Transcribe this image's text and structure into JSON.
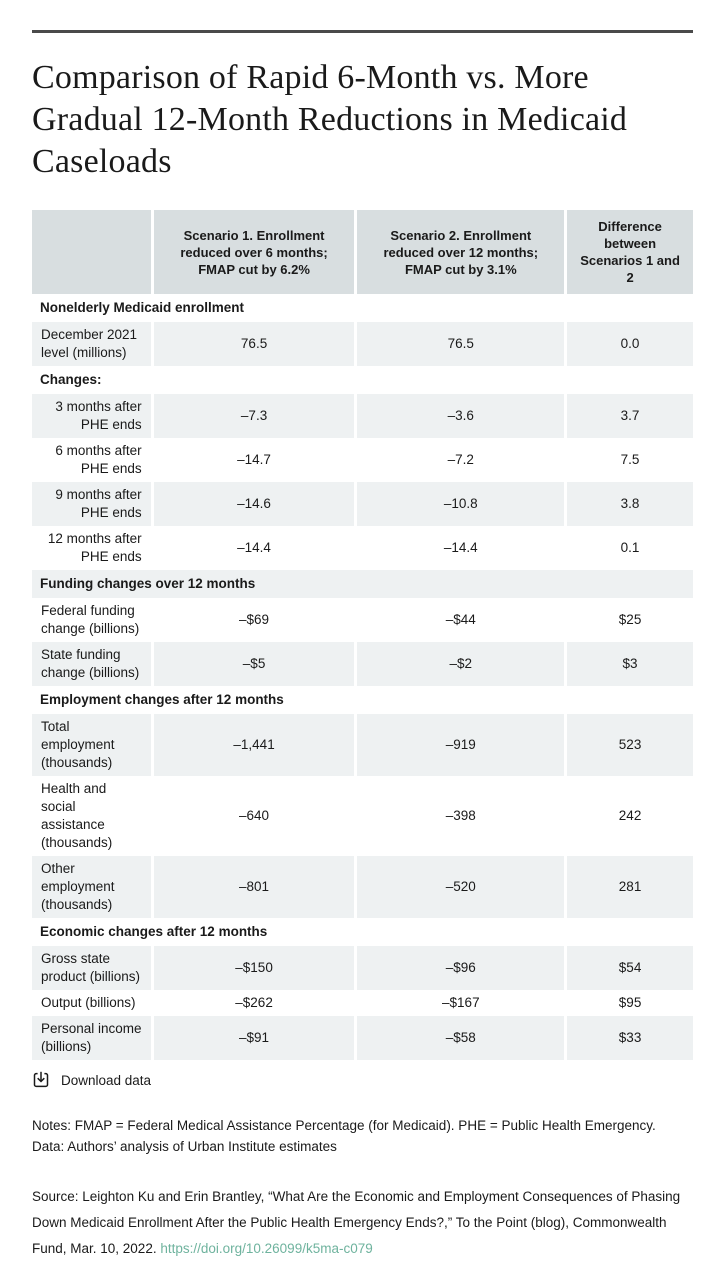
{
  "title": "Comparison of Rapid 6-Month vs. More Gradual 12-Month Reductions in Medicaid Caseloads",
  "table": {
    "columns": [
      "",
      "Scenario 1. Enrollment reduced over 6 months; FMAP cut by 6.2%",
      "Scenario 2. Enrollment reduced over 12 months; FMAP cut by 3.1%",
      "Difference between Scenarios 1 and 2"
    ],
    "rows": [
      {
        "type": "section",
        "label": "Nonelderly Medicaid enrollment"
      },
      {
        "type": "data",
        "label": "December 2021 level (millions)",
        "align": "left",
        "values": [
          "76.5",
          "76.5",
          "0.0"
        ]
      },
      {
        "type": "section",
        "label": "Changes:"
      },
      {
        "type": "data",
        "label": "3 months after PHE ends",
        "align": "right",
        "values": [
          "–7.3",
          "–3.6",
          "3.7"
        ]
      },
      {
        "type": "data",
        "label": "6 months after PHE ends",
        "align": "right",
        "values": [
          "–14.7",
          "–7.2",
          "7.5"
        ]
      },
      {
        "type": "data",
        "label": "9 months after PHE ends",
        "align": "right",
        "values": [
          "–14.6",
          "–10.8",
          "3.8"
        ]
      },
      {
        "type": "data",
        "label": "12 months after PHE ends",
        "align": "right",
        "values": [
          "–14.4",
          "–14.4",
          "0.1"
        ]
      },
      {
        "type": "section",
        "label": "Funding changes over 12 months"
      },
      {
        "type": "data",
        "label": "Federal funding change (billions)",
        "align": "left",
        "values": [
          "–$69",
          "–$44",
          "$25"
        ]
      },
      {
        "type": "data",
        "label": "State funding change (billions)",
        "align": "left",
        "values": [
          "–$5",
          "–$2",
          "$3"
        ]
      },
      {
        "type": "section",
        "label": "Employment changes after 12 months"
      },
      {
        "type": "data",
        "label": "Total employment (thousands)",
        "align": "left",
        "values": [
          "–1,441",
          "–919",
          "523"
        ]
      },
      {
        "type": "data",
        "label": "Health and social assistance (thousands)",
        "align": "left",
        "values": [
          "–640",
          "–398",
          "242"
        ]
      },
      {
        "type": "data",
        "label": "Other employment (thousands)",
        "align": "left",
        "values": [
          "–801",
          "–520",
          "281"
        ]
      },
      {
        "type": "section",
        "label": "Economic changes after 12 months"
      },
      {
        "type": "data",
        "label": "Gross state product (billions)",
        "align": "left",
        "values": [
          "–$150",
          "–$96",
          "$54"
        ]
      },
      {
        "type": "data",
        "label": "Output (billions)",
        "align": "left",
        "values": [
          "–$262",
          "–$167",
          "$95"
        ]
      },
      {
        "type": "data",
        "label": "Personal income (billions)",
        "align": "left",
        "values": [
          "–$91",
          "–$58",
          "$33"
        ]
      }
    ]
  },
  "chart_data": {
    "type": "table",
    "title": "Comparison of Rapid 6-Month vs. More Gradual 12-Month Reductions in Medicaid Caseloads",
    "columns": [
      "Scenario 1. Enrollment reduced over 6 months; FMAP cut by 6.2%",
      "Scenario 2. Enrollment reduced over 12 months; FMAP cut by 3.1%",
      "Difference between Scenarios 1 and 2"
    ],
    "sections": [
      {
        "header": "Nonelderly Medicaid enrollment",
        "rows": [
          {
            "label": "December 2021 level (millions)",
            "scenario1": 76.5,
            "scenario2": 76.5,
            "difference": 0.0
          }
        ]
      },
      {
        "header": "Changes:",
        "rows": [
          {
            "label": "3 months after PHE ends",
            "scenario1": -7.3,
            "scenario2": -3.6,
            "difference": 3.7
          },
          {
            "label": "6 months after PHE ends",
            "scenario1": -14.7,
            "scenario2": -7.2,
            "difference": 7.5
          },
          {
            "label": "9 months after PHE ends",
            "scenario1": -14.6,
            "scenario2": -10.8,
            "difference": 3.8
          },
          {
            "label": "12 months after PHE ends",
            "scenario1": -14.4,
            "scenario2": -14.4,
            "difference": 0.1
          }
        ]
      },
      {
        "header": "Funding changes over 12 months",
        "rows": [
          {
            "label": "Federal funding change (billions)",
            "scenario1": -69,
            "scenario2": -44,
            "difference": 25
          },
          {
            "label": "State funding change (billions)",
            "scenario1": -5,
            "scenario2": -2,
            "difference": 3
          }
        ]
      },
      {
        "header": "Employment changes after 12 months",
        "rows": [
          {
            "label": "Total employment (thousands)",
            "scenario1": -1441,
            "scenario2": -919,
            "difference": 523
          },
          {
            "label": "Health and social assistance (thousands)",
            "scenario1": -640,
            "scenario2": -398,
            "difference": 242
          },
          {
            "label": "Other employment (thousands)",
            "scenario1": -801,
            "scenario2": -520,
            "difference": 281
          }
        ]
      },
      {
        "header": "Economic changes after 12 months",
        "rows": [
          {
            "label": "Gross state product (billions)",
            "scenario1": -150,
            "scenario2": -96,
            "difference": 54
          },
          {
            "label": "Output (billions)",
            "scenario1": -262,
            "scenario2": -167,
            "difference": 95
          },
          {
            "label": "Personal income (billions)",
            "scenario1": -91,
            "scenario2": -58,
            "difference": 33
          }
        ]
      }
    ]
  },
  "download": {
    "label": "Download data",
    "icon": "download-icon"
  },
  "notes": {
    "line1": "Notes: FMAP = Federal Medical Assistance Percentage (for Medicaid). PHE = Public Health Emergency.",
    "line2": "Data: Authors’ analysis of Urban Institute estimates"
  },
  "source": {
    "prefix": "Source: Leighton Ku and Erin Brantley, “What Are the Economic and Employment Consequences of Phasing Down Medicaid Enrollment After the Public Health Emergency Ends?,” To the Point (blog), Commonwealth Fund, Mar. 10, 2022. ",
    "link": "https://doi.org/10.26099/k5ma-c079"
  },
  "colors": {
    "header_bg": "#d8dee0",
    "stripe_bg": "#eef1f2",
    "rule": "#4a4a4a",
    "text": "#1a1a1a",
    "link": "#6fb39e"
  }
}
